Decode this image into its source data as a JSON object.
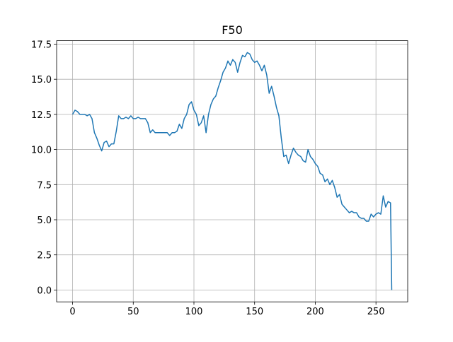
{
  "chart_data": {
    "type": "line",
    "title": "F50",
    "color": "#1f77b4",
    "grid": true,
    "x": [
      0,
      2,
      4,
      6,
      8,
      10,
      12,
      14,
      16,
      18,
      20,
      22,
      24,
      26,
      28,
      30,
      32,
      34,
      36,
      38,
      40,
      42,
      44,
      46,
      48,
      50,
      52,
      54,
      56,
      58,
      60,
      62,
      64,
      66,
      68,
      70,
      72,
      74,
      76,
      78,
      80,
      82,
      84,
      86,
      88,
      90,
      92,
      94,
      96,
      98,
      100,
      102,
      104,
      106,
      108,
      110,
      112,
      114,
      116,
      118,
      120,
      122,
      124,
      126,
      128,
      130,
      132,
      134,
      136,
      138,
      140,
      142,
      144,
      146,
      148,
      150,
      152,
      154,
      156,
      158,
      160,
      162,
      164,
      166,
      168,
      170,
      172,
      174,
      176,
      178,
      180,
      182,
      184,
      186,
      188,
      190,
      192,
      194,
      196,
      198,
      200,
      202,
      204,
      206,
      208,
      210,
      212,
      214,
      216,
      218,
      220,
      222,
      224,
      226,
      228,
      230,
      232,
      234,
      236,
      238,
      240,
      242,
      244,
      246,
      248,
      250,
      252,
      254,
      256,
      258,
      260,
      262,
      263
    ],
    "values": [
      12.5,
      12.8,
      12.7,
      12.5,
      12.5,
      12.5,
      12.4,
      12.5,
      12.2,
      11.2,
      10.8,
      10.3,
      9.9,
      10.5,
      10.6,
      10.2,
      10.4,
      10.4,
      11.3,
      12.4,
      12.2,
      12.2,
      12.3,
      12.2,
      12.4,
      12.2,
      12.2,
      12.3,
      12.2,
      12.2,
      12.2,
      11.9,
      11.2,
      11.4,
      11.2,
      11.2,
      11.2,
      11.2,
      11.2,
      11.2,
      11.0,
      11.2,
      11.2,
      11.3,
      11.8,
      11.5,
      12.2,
      12.5,
      13.2,
      13.4,
      12.8,
      12.5,
      11.7,
      11.9,
      12.4,
      11.2,
      12.5,
      13.2,
      13.6,
      13.8,
      14.4,
      14.9,
      15.5,
      15.8,
      16.3,
      16.0,
      16.4,
      16.2,
      15.5,
      16.2,
      16.7,
      16.6,
      16.9,
      16.8,
      16.4,
      16.2,
      16.3,
      16.0,
      15.6,
      16.0,
      15.3,
      14.0,
      14.5,
      13.8,
      13.0,
      12.4,
      10.8,
      9.5,
      9.6,
      9.0,
      9.6,
      10.1,
      9.8,
      9.6,
      9.5,
      9.2,
      9.1,
      10.0,
      9.5,
      9.3,
      9.0,
      8.8,
      8.3,
      8.2,
      7.7,
      7.9,
      7.5,
      7.8,
      7.3,
      6.6,
      6.8,
      6.1,
      5.9,
      5.7,
      5.5,
      5.6,
      5.5,
      5.5,
      5.2,
      5.1,
      5.1,
      4.9,
      4.9,
      5.4,
      5.2,
      5.4,
      5.5,
      5.4,
      6.7,
      5.9,
      6.3,
      6.2,
      0.0
    ],
    "xlim": [
      -13.15,
      276.15
    ],
    "xticks": [
      0,
      50,
      100,
      150,
      200,
      250
    ],
    "ylim": [
      -0.845,
      17.745
    ],
    "yticks": [
      {
        "value": 0,
        "label": "0.0"
      },
      2.5,
      {
        "value": 5,
        "label": "5.0"
      },
      7.5,
      {
        "value": 10,
        "label": "10.0"
      },
      12.5,
      {
        "value": 15,
        "label": "15.0"
      },
      17.5
    ]
  }
}
